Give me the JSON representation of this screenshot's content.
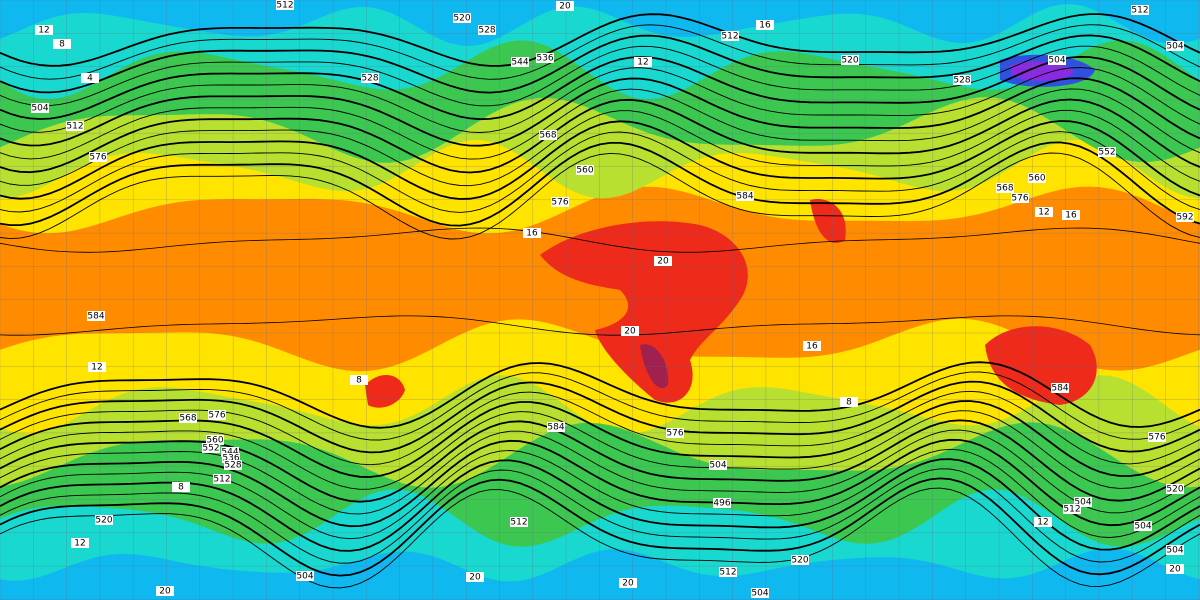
{
  "contour_labels": [
    "512",
    "520",
    "528",
    "20",
    "16",
    "512",
    "512",
    "504",
    "504",
    "12",
    "8",
    "4",
    "504",
    "512",
    "528",
    "536",
    "544",
    "12",
    "520",
    "528",
    "552",
    "560",
    "568",
    "576",
    "12",
    "16",
    "592",
    "576",
    "16",
    "584",
    "568",
    "560",
    "576",
    "20",
    "20",
    "16",
    "584",
    "12",
    "8",
    "584",
    "8",
    "576",
    "568",
    "560",
    "552",
    "544",
    "536",
    "528",
    "512",
    "8",
    "520",
    "12",
    "584",
    "576",
    "504",
    "496",
    "512",
    "504",
    "512",
    "504",
    "504",
    "12",
    "520",
    "576",
    "512",
    "520",
    "504",
    "20",
    "20",
    "20",
    "504",
    "20"
  ]
}
